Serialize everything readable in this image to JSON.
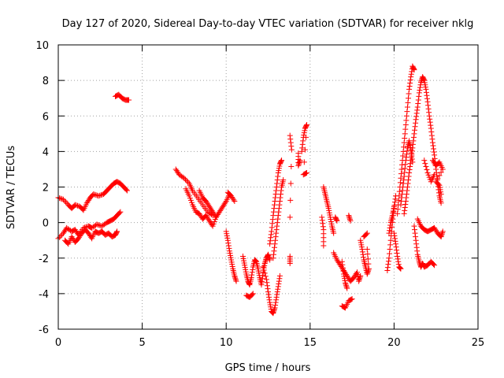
{
  "chart_data": {
    "type": "scatter",
    "title": "Day 127 of 2020, Sidereal Day-to-day VTEC variation (SDTVAR) for receiver nklg",
    "xlabel": "GPS time / hours",
    "ylabel": "SDTVAR / TECUs",
    "xlim": [
      0,
      25
    ],
    "ylim": [
      -6,
      10
    ],
    "x_ticks": [
      "0",
      "5",
      "10",
      "15",
      "20",
      "25"
    ],
    "y_ticks": [
      "-6",
      "-4",
      "-2",
      "0",
      "2",
      "4",
      "6",
      "8",
      "10"
    ],
    "grid": true,
    "marker": "plus",
    "color": "#ff0000",
    "traces": [
      [
        [
          0.0,
          1.4
        ],
        [
          0.3,
          1.3
        ],
        [
          0.6,
          1.0
        ],
        [
          0.8,
          0.8
        ],
        [
          1.0,
          1.0
        ],
        [
          1.3,
          0.9
        ],
        [
          1.5,
          0.7
        ],
        [
          1.7,
          1.1
        ],
        [
          1.9,
          1.4
        ],
        [
          2.1,
          1.6
        ],
        [
          2.4,
          1.5
        ],
        [
          2.7,
          1.6
        ],
        [
          2.9,
          1.8
        ],
        [
          3.1,
          2.0
        ],
        [
          3.3,
          2.2
        ],
        [
          3.5,
          2.3
        ],
        [
          3.7,
          2.2
        ],
        [
          3.9,
          2.0
        ],
        [
          4.1,
          1.8
        ]
      ],
      [
        [
          0.0,
          -0.9
        ],
        [
          0.3,
          -0.6
        ],
        [
          0.5,
          -0.3
        ],
        [
          0.8,
          -0.5
        ],
        [
          1.0,
          -0.4
        ],
        [
          1.2,
          -0.7
        ],
        [
          1.5,
          -0.3
        ],
        [
          1.8,
          -0.2
        ],
        [
          2.0,
          -0.3
        ],
        [
          2.3,
          -0.1
        ],
        [
          2.6,
          -0.2
        ],
        [
          2.9,
          0.0
        ],
        [
          3.1,
          0.1
        ],
        [
          3.3,
          0.2
        ],
        [
          3.5,
          0.4
        ],
        [
          3.7,
          0.6
        ]
      ],
      [
        [
          0.4,
          -1.0
        ],
        [
          0.6,
          -1.2
        ],
        [
          0.8,
          -0.8
        ],
        [
          1.0,
          -1.1
        ],
        [
          1.2,
          -0.9
        ],
        [
          1.4,
          -0.6
        ],
        [
          1.6,
          -0.4
        ],
        [
          1.8,
          -0.6
        ],
        [
          2.0,
          -0.9
        ],
        [
          2.2,
          -0.5
        ],
        [
          2.4,
          -0.6
        ],
        [
          2.6,
          -0.5
        ],
        [
          2.8,
          -0.7
        ],
        [
          3.0,
          -0.6
        ],
        [
          3.2,
          -0.8
        ],
        [
          3.4,
          -0.7
        ],
        [
          3.5,
          -0.5
        ]
      ],
      [
        [
          3.4,
          7.1
        ],
        [
          3.6,
          7.2
        ],
        [
          3.8,
          7.0
        ],
        [
          4.0,
          6.9
        ],
        [
          4.2,
          6.9
        ]
      ],
      [
        [
          7.0,
          3.0
        ],
        [
          7.2,
          2.7
        ],
        [
          7.5,
          2.5
        ],
        [
          7.8,
          2.2
        ],
        [
          8.0,
          1.8
        ],
        [
          8.3,
          1.4
        ],
        [
          8.6,
          1.0
        ],
        [
          8.9,
          0.6
        ],
        [
          9.2,
          0.4
        ]
      ],
      [
        [
          7.6,
          1.9
        ],
        [
          7.8,
          1.5
        ],
        [
          8.0,
          1.0
        ],
        [
          8.2,
          0.6
        ],
        [
          8.4,
          0.5
        ],
        [
          8.6,
          0.2
        ],
        [
          8.8,
          0.4
        ],
        [
          9.0,
          0.1
        ],
        [
          9.2,
          -0.2
        ],
        [
          9.4,
          0.3
        ],
        [
          9.6,
          0.6
        ],
        [
          9.8,
          0.9
        ],
        [
          10.0,
          1.2
        ],
        [
          10.2,
          1.6
        ]
      ],
      [
        [
          8.4,
          1.8
        ],
        [
          8.6,
          1.4
        ],
        [
          8.8,
          1.2
        ],
        [
          9.0,
          0.9
        ],
        [
          9.2,
          0.6
        ],
        [
          9.4,
          0.3
        ]
      ],
      [
        [
          10.1,
          1.7
        ],
        [
          10.3,
          1.5
        ],
        [
          10.5,
          1.2
        ]
      ],
      [
        [
          10.0,
          -0.5
        ],
        [
          10.1,
          -1.0
        ],
        [
          10.2,
          -1.6
        ],
        [
          10.3,
          -2.1
        ],
        [
          10.4,
          -2.6
        ],
        [
          10.5,
          -3.0
        ],
        [
          10.6,
          -3.3
        ]
      ],
      [
        [
          11.0,
          -1.9
        ],
        [
          11.1,
          -2.4
        ],
        [
          11.2,
          -2.9
        ],
        [
          11.3,
          -3.3
        ],
        [
          11.4,
          -3.5
        ],
        [
          11.5,
          -3.1
        ],
        [
          11.6,
          -2.5
        ],
        [
          11.7,
          -2.1
        ],
        [
          11.8,
          -2.2
        ],
        [
          11.9,
          -2.6
        ],
        [
          12.0,
          -3.1
        ],
        [
          12.1,
          -3.5
        ],
        [
          12.2,
          -2.8
        ],
        [
          12.3,
          -2.3
        ],
        [
          12.4,
          -2.0
        ],
        [
          12.5,
          -1.8
        ],
        [
          12.6,
          -2.1
        ]
      ],
      [
        [
          11.2,
          -4.1
        ],
        [
          11.4,
          -4.2
        ],
        [
          11.6,
          -4.0
        ]
      ],
      [
        [
          12.2,
          -2.5
        ],
        [
          12.4,
          -3.2
        ],
        [
          12.5,
          -3.9
        ],
        [
          12.6,
          -4.5
        ],
        [
          12.7,
          -5.0
        ],
        [
          12.8,
          -5.1
        ],
        [
          12.9,
          -4.8
        ],
        [
          13.0,
          -4.2
        ],
        [
          13.1,
          -3.6
        ],
        [
          13.2,
          -3.0
        ]
      ],
      [
        [
          12.6,
          -1.2
        ],
        [
          12.7,
          -0.5
        ],
        [
          12.8,
          0.4
        ],
        [
          12.9,
          1.2
        ],
        [
          13.0,
          2.0
        ],
        [
          13.1,
          2.8
        ],
        [
          13.2,
          3.3
        ],
        [
          13.3,
          3.5
        ]
      ],
      [
        [
          12.8,
          -2.0
        ],
        [
          12.9,
          -1.2
        ],
        [
          13.0,
          -0.4
        ],
        [
          13.1,
          0.4
        ],
        [
          13.2,
          1.2
        ],
        [
          13.3,
          2.0
        ],
        [
          13.4,
          2.4
        ]
      ],
      [
        [
          13.8,
          -1.9
        ],
        [
          13.8,
          -2.3
        ]
      ],
      [
        [
          13.8,
          4.9
        ],
        [
          13.9,
          4.1
        ],
        [
          13.8,
          0.3
        ]
      ],
      [
        [
          14.3,
          3.9
        ],
        [
          14.3,
          3.2
        ],
        [
          14.4,
          3.5
        ]
      ],
      [
        [
          14.5,
          4.0
        ],
        [
          14.6,
          4.8
        ],
        [
          14.7,
          5.3
        ],
        [
          14.8,
          5.5
        ],
        [
          14.6,
          2.7
        ],
        [
          14.8,
          2.8
        ]
      ],
      [
        [
          15.8,
          2.0
        ],
        [
          15.9,
          1.6
        ],
        [
          16.0,
          1.2
        ],
        [
          16.1,
          0.8
        ],
        [
          16.2,
          0.3
        ],
        [
          16.3,
          -0.2
        ],
        [
          16.4,
          -0.6
        ]
      ],
      [
        [
          15.7,
          0.3
        ],
        [
          15.8,
          -0.4
        ],
        [
          15.8,
          -1.3
        ]
      ],
      [
        [
          16.5,
          0.3
        ],
        [
          16.6,
          0.1
        ]
      ],
      [
        [
          16.4,
          -1.7
        ],
        [
          16.6,
          -2.1
        ],
        [
          16.8,
          -2.4
        ],
        [
          17.0,
          -2.7
        ],
        [
          17.2,
          -3.0
        ],
        [
          17.4,
          -3.3
        ],
        [
          17.6,
          -3.1
        ],
        [
          17.8,
          -2.8
        ],
        [
          17.9,
          -3.3
        ],
        [
          18.0,
          -3.0
        ]
      ],
      [
        [
          16.9,
          -2.2
        ],
        [
          17.0,
          -2.9
        ],
        [
          17.1,
          -3.4
        ],
        [
          17.2,
          -3.7
        ]
      ],
      [
        [
          16.9,
          -4.7
        ],
        [
          17.1,
          -4.8
        ],
        [
          17.3,
          -4.4
        ],
        [
          17.5,
          -4.3
        ]
      ],
      [
        [
          17.3,
          0.4
        ],
        [
          17.4,
          0.1
        ]
      ],
      [
        [
          18.0,
          -1.0
        ],
        [
          18.1,
          -1.5
        ],
        [
          18.2,
          -2.1
        ],
        [
          18.3,
          -2.5
        ],
        [
          18.4,
          -2.9
        ],
        [
          18.5,
          -2.6
        ],
        [
          18.4,
          -1.5
        ]
      ],
      [
        [
          18.2,
          -0.8
        ],
        [
          18.4,
          -0.6
        ]
      ],
      [
        [
          19.6,
          -2.7
        ],
        [
          19.7,
          -2.0
        ],
        [
          19.8,
          -1.0
        ],
        [
          19.9,
          0.0
        ],
        [
          20.0,
          0.8
        ],
        [
          20.1,
          1.5
        ]
      ],
      [
        [
          19.7,
          -0.6
        ],
        [
          19.8,
          0.0
        ],
        [
          19.9,
          0.4
        ],
        [
          20.0,
          0.9
        ]
      ],
      [
        [
          20.0,
          -0.6
        ],
        [
          20.1,
          -1.2
        ],
        [
          20.2,
          -1.9
        ],
        [
          20.3,
          -2.5
        ],
        [
          20.4,
          -2.6
        ]
      ],
      [
        [
          20.2,
          0.5
        ],
        [
          20.3,
          1.5
        ],
        [
          20.4,
          2.5
        ],
        [
          20.5,
          3.5
        ],
        [
          20.6,
          4.5
        ],
        [
          20.7,
          5.5
        ],
        [
          20.8,
          6.5
        ],
        [
          20.9,
          7.5
        ],
        [
          21.0,
          8.2
        ],
        [
          21.1,
          8.8
        ],
        [
          21.2,
          8.6
        ]
      ],
      [
        [
          20.4,
          1.0
        ],
        [
          20.5,
          1.8
        ],
        [
          20.6,
          2.6
        ],
        [
          20.7,
          3.5
        ],
        [
          20.8,
          4.2
        ],
        [
          20.9,
          4.6
        ],
        [
          21.0,
          4.1
        ],
        [
          21.1,
          3.4
        ]
      ],
      [
        [
          20.6,
          0.5
        ],
        [
          20.7,
          1.2
        ],
        [
          20.8,
          2.0
        ],
        [
          20.9,
          2.8
        ],
        [
          21.0,
          3.5
        ],
        [
          21.1,
          4.2
        ],
        [
          21.2,
          5.0
        ],
        [
          21.3,
          5.8
        ],
        [
          21.4,
          6.5
        ],
        [
          21.5,
          7.3
        ],
        [
          21.6,
          7.9
        ],
        [
          21.7,
          8.2
        ],
        [
          21.8,
          8.0
        ],
        [
          21.9,
          7.5
        ],
        [
          22.0,
          6.8
        ],
        [
          22.1,
          6.0
        ],
        [
          22.2,
          5.3
        ],
        [
          22.3,
          4.5
        ],
        [
          22.4,
          3.8
        ],
        [
          22.5,
          3.0
        ],
        [
          22.6,
          2.2
        ],
        [
          22.7,
          1.5
        ],
        [
          22.8,
          1.1
        ]
      ],
      [
        [
          21.2,
          -0.2
        ],
        [
          21.3,
          -1.0
        ],
        [
          21.4,
          -1.8
        ],
        [
          21.5,
          -2.2
        ],
        [
          21.6,
          -2.5
        ],
        [
          21.7,
          -2.3
        ],
        [
          21.8,
          -2.5
        ],
        [
          22.0,
          -2.4
        ],
        [
          22.2,
          -2.2
        ],
        [
          22.4,
          -2.4
        ]
      ],
      [
        [
          21.4,
          0.2
        ],
        [
          21.6,
          -0.2
        ],
        [
          21.8,
          -0.4
        ],
        [
          22.0,
          -0.5
        ],
        [
          22.2,
          -0.4
        ],
        [
          22.4,
          -0.3
        ],
        [
          22.6,
          -0.6
        ],
        [
          22.8,
          -0.8
        ],
        [
          22.9,
          -0.5
        ]
      ],
      [
        [
          22.3,
          3.5
        ],
        [
          22.5,
          3.2
        ],
        [
          22.7,
          3.4
        ],
        [
          22.9,
          3.0
        ],
        [
          22.5,
          2.3
        ],
        [
          22.7,
          2.1
        ],
        [
          22.8,
          1.6
        ]
      ],
      [
        [
          21.8,
          3.5
        ],
        [
          22.0,
          2.8
        ],
        [
          22.2,
          2.3
        ],
        [
          22.4,
          2.7
        ]
      ]
    ]
  }
}
